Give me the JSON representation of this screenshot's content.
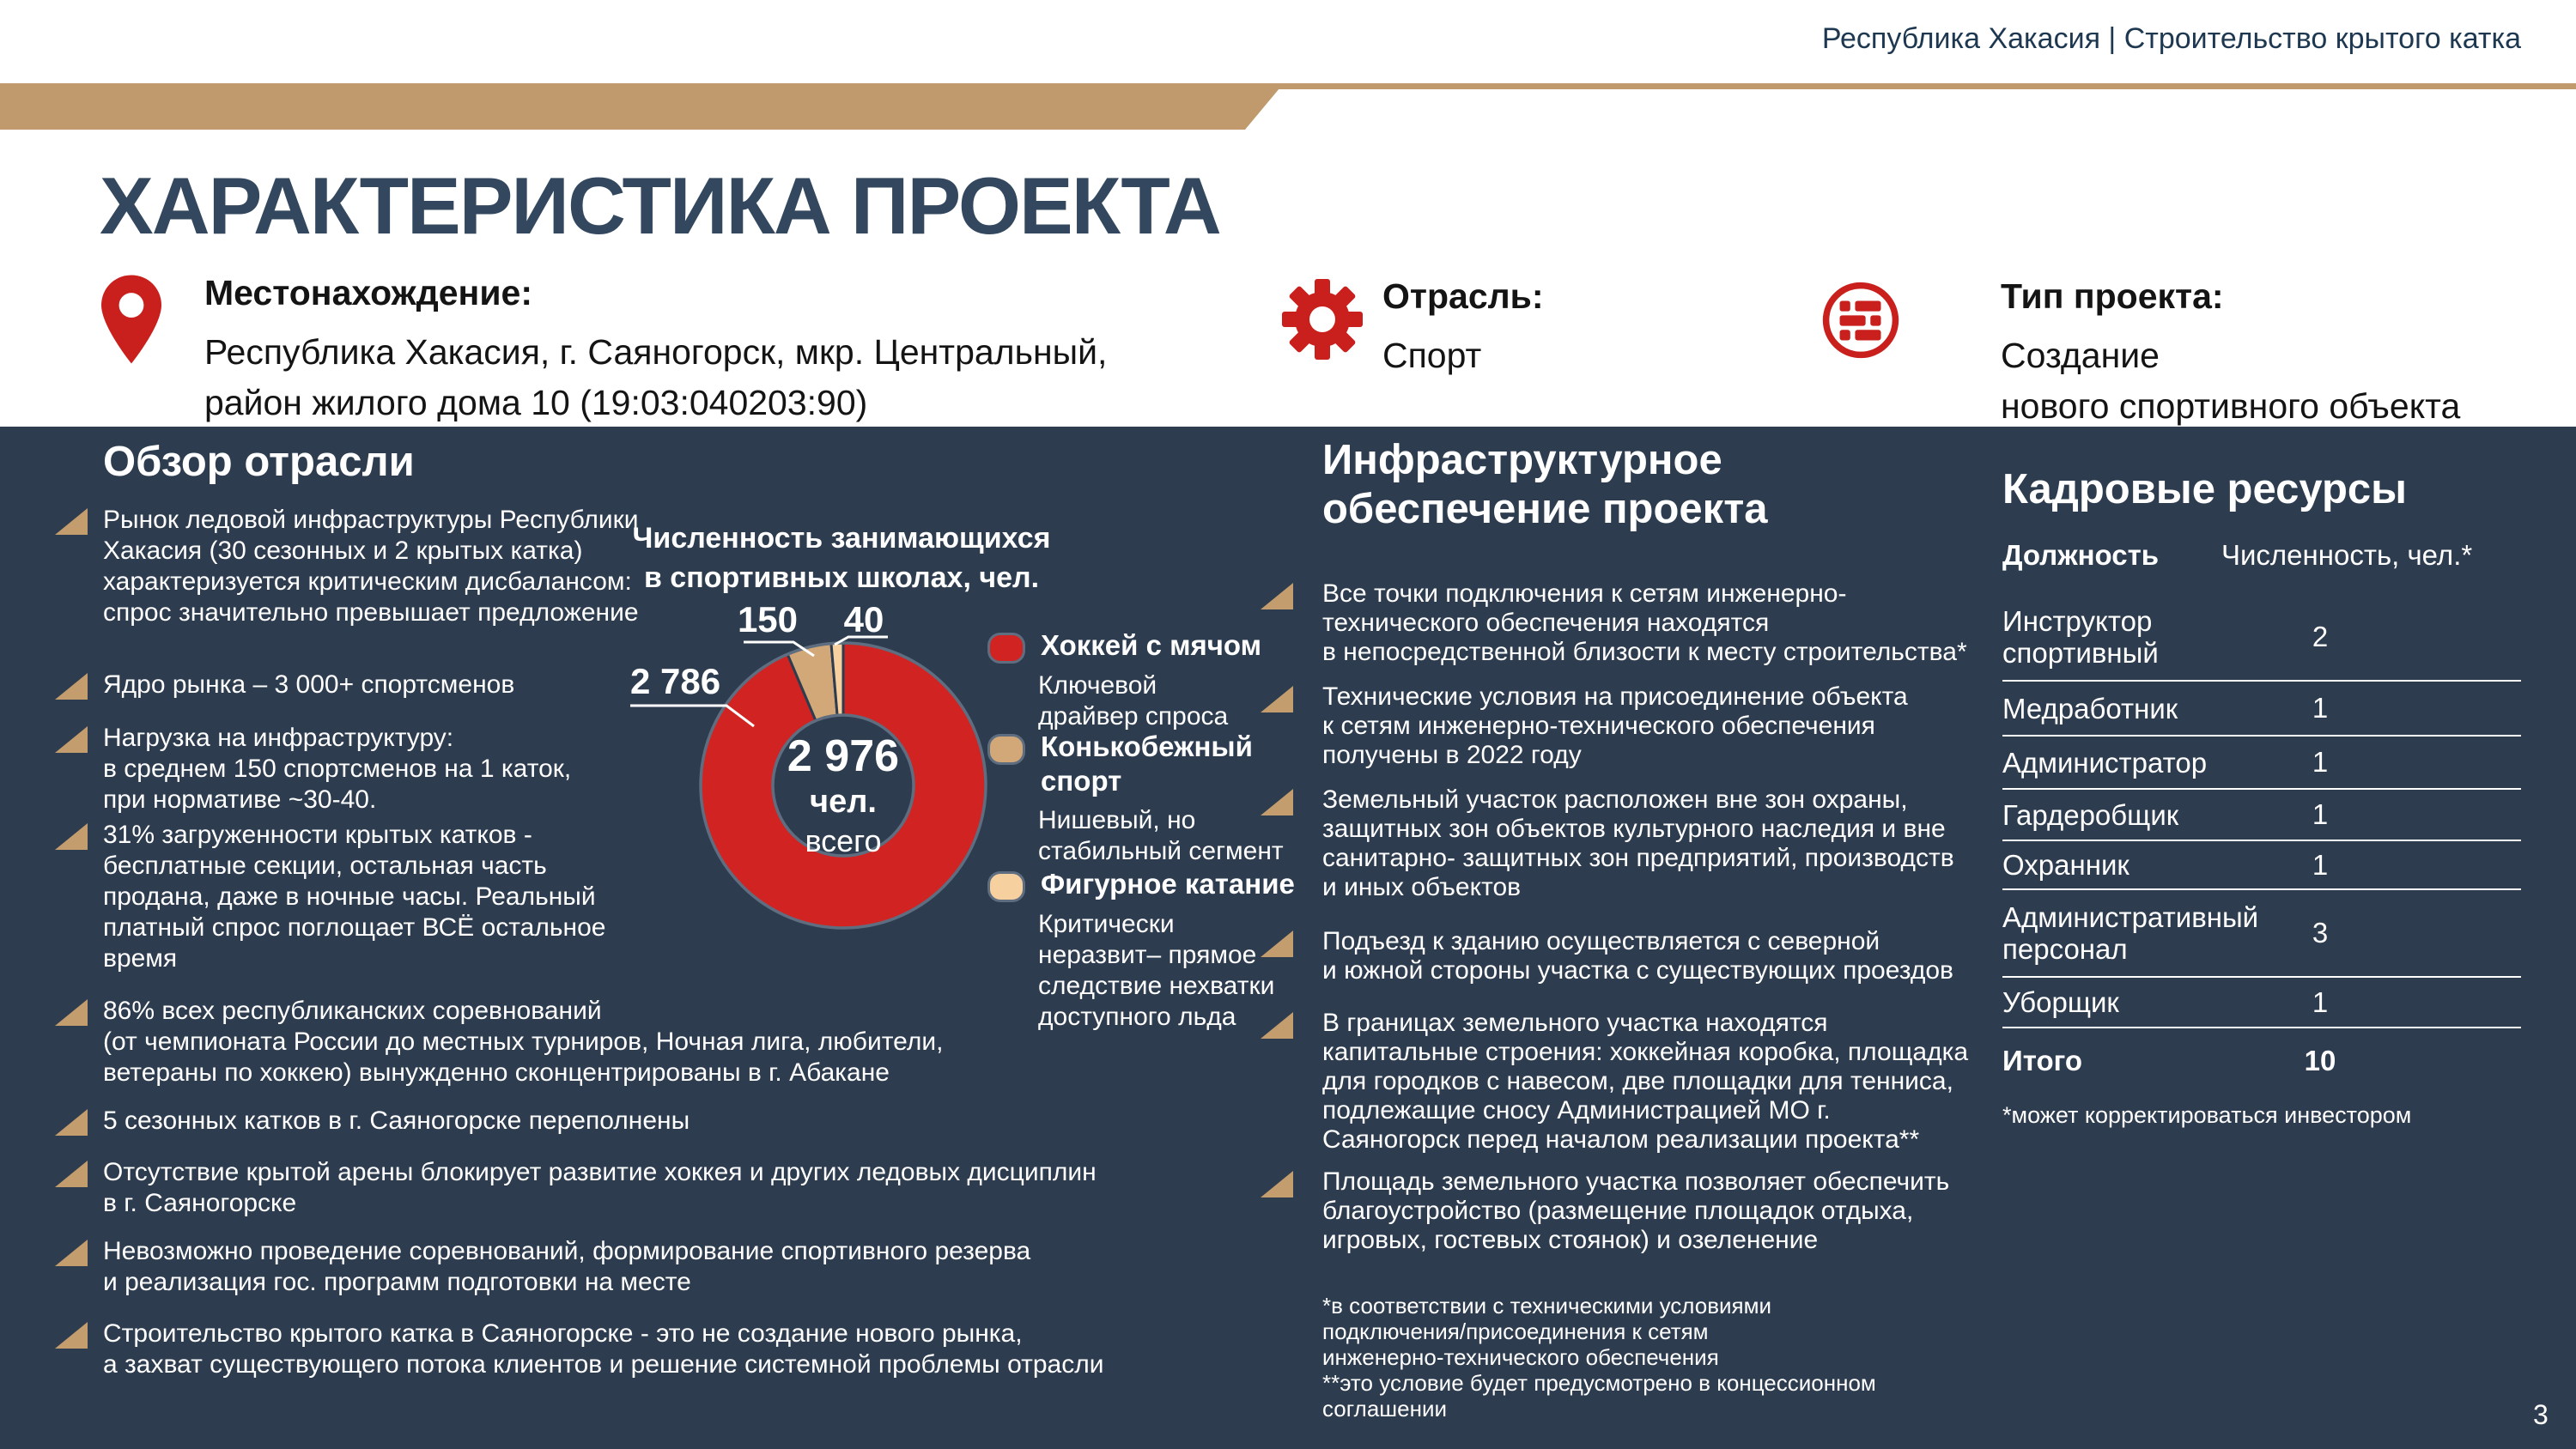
{
  "page": {
    "number": "3"
  },
  "header": {
    "breadcrumb": "Республика Хакасия | Строительство крытого катка",
    "title": "ХАРАКТЕРИСТИКА ПРОЕКТА",
    "info": [
      {
        "icon": "location-pin",
        "label": "Местонахождение:",
        "value": "Республика Хакасия, г. Саяногорск, мкр. Центральный,\nрайон жилого дома 10 (19:03:040203:90)"
      },
      {
        "icon": "gear",
        "label": "Отрасль:",
        "value": "Спорт"
      },
      {
        "icon": "project-type",
        "label": "Тип проекта:",
        "value": "Создание\nнового спортивного объекта"
      }
    ]
  },
  "overview": {
    "title": "Обзор отрасли",
    "bullets": [
      "Рынок ледовой инфраструктуры Республики\nХакасия (30 сезонных и 2 крытых катка)\nхарактеризуется критическим дисбалансом:\nспрос значительно превышает предложение",
      "Ядро рынка – 3 000+ спортсменов",
      "Нагрузка на инфраструктуру:\nв среднем 150 спортсменов на 1 каток,\nпри нормативе ~30-40.",
      "31% загруженности крытых катков -\nбесплатные секции,  остальная часть\nпродана, даже в ночные часы. Реальный\nплатный спрос поглощает ВСЁ остальное\nвремя",
      "86% всех республиканских соревнований\n(от чемпионата России до местных турниров, Ночная лига, любители,\nветераны по хоккею) вынужденно сконцентрированы в г. Абакане",
      "5 сезонных катков в г. Саяногорске переполнены",
      "Отсутствие крытой арены блокирует развитие хоккея и других ледовых дисциплин\nв г. Саяногорске",
      "Невозможно проведение соревнований, формирование спортивного резерва\nи реализация гос. программ подготовки на месте",
      "Строительство крытого катка в Саяногорске - это не создание нового рынка,\nа захват существующего потока клиентов и решение системной проблемы отрасли"
    ]
  },
  "chart_data": {
    "type": "pie",
    "subtype": "donut",
    "title": "Численность занимающихся\nв спортивных школах, чел.",
    "center": {
      "value": "2 976",
      "unit": "чел.",
      "caption": "всего"
    },
    "total": 2976,
    "start_angle_deg": 0,
    "direction": "clockwise",
    "legend_position": "right",
    "slices": [
      {
        "name": "Хоккей с мячом",
        "value": 2786,
        "label": "2 786",
        "color": "#d12422",
        "desc": "Ключевой\nдрайвер спроса"
      },
      {
        "name": "Конькобежный\nспорт",
        "value": 150,
        "label": "150",
        "color": "#d2a878",
        "desc": "Нишевый, но\nстабильный сегмент"
      },
      {
        "name": "Фигурное катание",
        "value": 40,
        "label": "40",
        "color": "#f7d09f",
        "desc": "Критически\nнеразвит– прямое\nследствие нехватки\nдоступного льда"
      }
    ]
  },
  "infrastructure": {
    "title": "Инфраструктурное\nобеспечение проекта",
    "bullets": [
      "Все точки подключения к сетям инженерно-\nтехнического обеспечения находятся\nв непосредственной близости к месту строительства*",
      "Технические условия на присоединение объекта\nк сетям инженерно-технического обеспечения\nполучены в 2022 году",
      "Земельный участок расположен вне зон охраны,\nзащитных зон объектов культурного наследия и вне\nсанитарно- защитных зон предприятий, производств\nи иных объектов",
      "Подъезд к зданию осуществляется с северной\nи южной стороны участка с существующих проездов",
      "В границах земельного участка находятся\nкапитальные строения: хоккейная коробка, площадка\nдля городков с навесом, две площадки для тенниса,\nподлежащие сносу Администрацией МО г.\nСаяногорск перед началом реализации проекта**",
      "Площадь земельного участка позволяет обеспечить\nблагоустройство (размещение площадок отдыха,\nигровых, гостевых стоянок) и озеленение"
    ],
    "footnote": "*в соответствии  с техническими условиями\nподключения/присоединения к сетям\nинженерно-технического обеспечения\n**это условие будет предусмотрено в концессионном\nсоглашении"
  },
  "staff": {
    "title": "Кадровые ресурсы",
    "col_position": "Должность",
    "col_count": "Численность, чел.*",
    "rows": [
      {
        "position": "Инструктор\nспортивный",
        "count": "2"
      },
      {
        "position": "Медработник",
        "count": "1"
      },
      {
        "position": "Администратор",
        "count": "1"
      },
      {
        "position": "Гардеробщик",
        "count": "1"
      },
      {
        "position": "Охранник",
        "count": "1"
      },
      {
        "position": "Административный\nперсонал",
        "count": "3"
      },
      {
        "position": "Уборщик",
        "count": "1"
      },
      {
        "position": "Итого",
        "count": "10"
      }
    ],
    "footnote": "*может корректироваться инвестором"
  }
}
